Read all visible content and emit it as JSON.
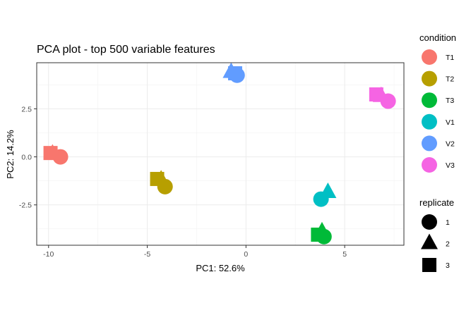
{
  "chart_data": {
    "type": "scatter",
    "title": "PCA plot - top 500 variable features",
    "xlabel": "PC1: 52.6%",
    "ylabel": "PC2: 14.2%",
    "xlim": [
      -10.6,
      8.0
    ],
    "ylim": [
      -4.6,
      4.9
    ],
    "xticks": [
      -10,
      -5,
      0,
      5
    ],
    "xtick_labels": [
      "-10",
      "-5",
      "0",
      "5"
    ],
    "yticks": [
      -2.5,
      0.0,
      2.5
    ],
    "ytick_labels": [
      "-2.5",
      "0.0",
      "2.5"
    ],
    "grid": true,
    "legend_position": "right",
    "color_legend": {
      "title": "condition",
      "entries": [
        {
          "label": "T1",
          "color": "#F8766D"
        },
        {
          "label": "T2",
          "color": "#B79F00"
        },
        {
          "label": "T3",
          "color": "#00BA38"
        },
        {
          "label": "V1",
          "color": "#00BFC4"
        },
        {
          "label": "V2",
          "color": "#619CFF"
        },
        {
          "label": "V3",
          "color": "#F564E3"
        }
      ]
    },
    "shape_legend": {
      "title": "replicate",
      "entries": [
        {
          "label": "1",
          "shape": "circle"
        },
        {
          "label": "2",
          "shape": "triangle"
        },
        {
          "label": "3",
          "shape": "square"
        }
      ]
    },
    "points": [
      {
        "condition": "T1",
        "replicate": "3",
        "x": -9.9,
        "y": 0.2
      },
      {
        "condition": "T1",
        "replicate": "2",
        "x": -9.8,
        "y": 0.15
      },
      {
        "condition": "T1",
        "replicate": "1",
        "x": -9.4,
        "y": 0.0
      },
      {
        "condition": "T2",
        "replicate": "3",
        "x": -4.5,
        "y": -1.15
      },
      {
        "condition": "T2",
        "replicate": "2",
        "x": -4.3,
        "y": -1.2
      },
      {
        "condition": "T2",
        "replicate": "1",
        "x": -4.1,
        "y": -1.55
      },
      {
        "condition": "T3",
        "replicate": "3",
        "x": 3.65,
        "y": -4.05
      },
      {
        "condition": "T3",
        "replicate": "2",
        "x": 3.85,
        "y": -3.9
      },
      {
        "condition": "T3",
        "replicate": "1",
        "x": 3.95,
        "y": -4.15
      },
      {
        "condition": "V1",
        "replicate": "2",
        "x": 4.15,
        "y": -1.85
      },
      {
        "condition": "V1",
        "replicate": "1",
        "x": 3.8,
        "y": -2.2
      },
      {
        "condition": "V2",
        "replicate": "2",
        "x": -0.75,
        "y": 4.4
      },
      {
        "condition": "V2",
        "replicate": "3",
        "x": -0.55,
        "y": 4.35
      },
      {
        "condition": "V2",
        "replicate": "1",
        "x": -0.45,
        "y": 4.25
      },
      {
        "condition": "V3",
        "replicate": "3",
        "x": 6.6,
        "y": 3.25
      },
      {
        "condition": "V3",
        "replicate": "2",
        "x": 6.85,
        "y": 3.15
      },
      {
        "condition": "V3",
        "replicate": "1",
        "x": 7.2,
        "y": 2.9
      }
    ]
  }
}
